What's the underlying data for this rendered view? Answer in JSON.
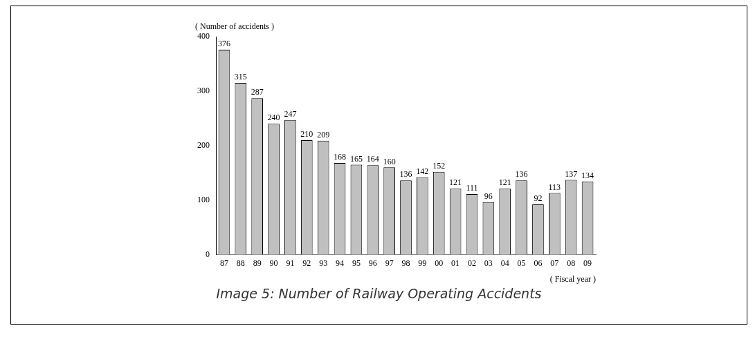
{
  "chart_data": {
    "type": "bar",
    "title": "Image 5: Number of Railway Operating Accidents",
    "ylabel": "( Number of accidents )",
    "xlabel": "( Fiscal year )",
    "categories": [
      "87",
      "88",
      "89",
      "90",
      "91",
      "92",
      "93",
      "94",
      "95",
      "96",
      "97",
      "98",
      "99",
      "00",
      "01",
      "02",
      "03",
      "04",
      "05",
      "06",
      "07",
      "08",
      "09"
    ],
    "values": [
      376,
      315,
      287,
      240,
      247,
      210,
      209,
      168,
      165,
      164,
      160,
      136,
      142,
      152,
      121,
      111,
      96,
      121,
      136,
      92,
      113,
      137,
      134
    ],
    "color": "#c0c0c0",
    "ylim": [
      0,
      400
    ],
    "yticks": [
      0,
      100,
      200,
      300,
      400
    ],
    "grid": false,
    "legend": false,
    "data_labels": true
  }
}
